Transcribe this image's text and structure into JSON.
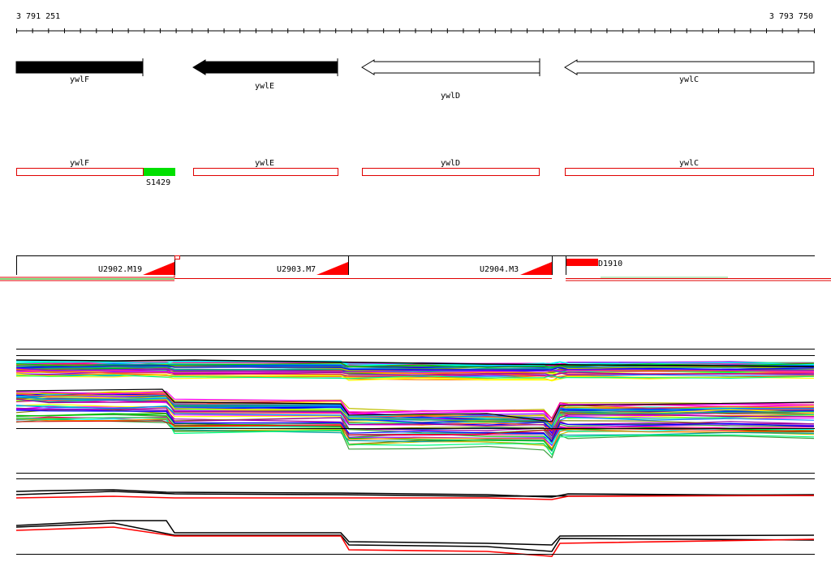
{
  "coords": {
    "start": "3 791 251",
    "end": "3 793 750"
  },
  "genes": [
    "ywlF",
    "ywlE",
    "ywlD",
    "ywlC"
  ],
  "feature_labels": {
    "green_box": "S1429"
  },
  "probes": [
    "U2902.M19",
    "U2903.M7",
    "U2904.M3",
    "D1910"
  ],
  "colors": {
    "bar_outline": "#e00000",
    "green": "#00e000",
    "red": "#ff0000",
    "black": "#000000"
  }
}
